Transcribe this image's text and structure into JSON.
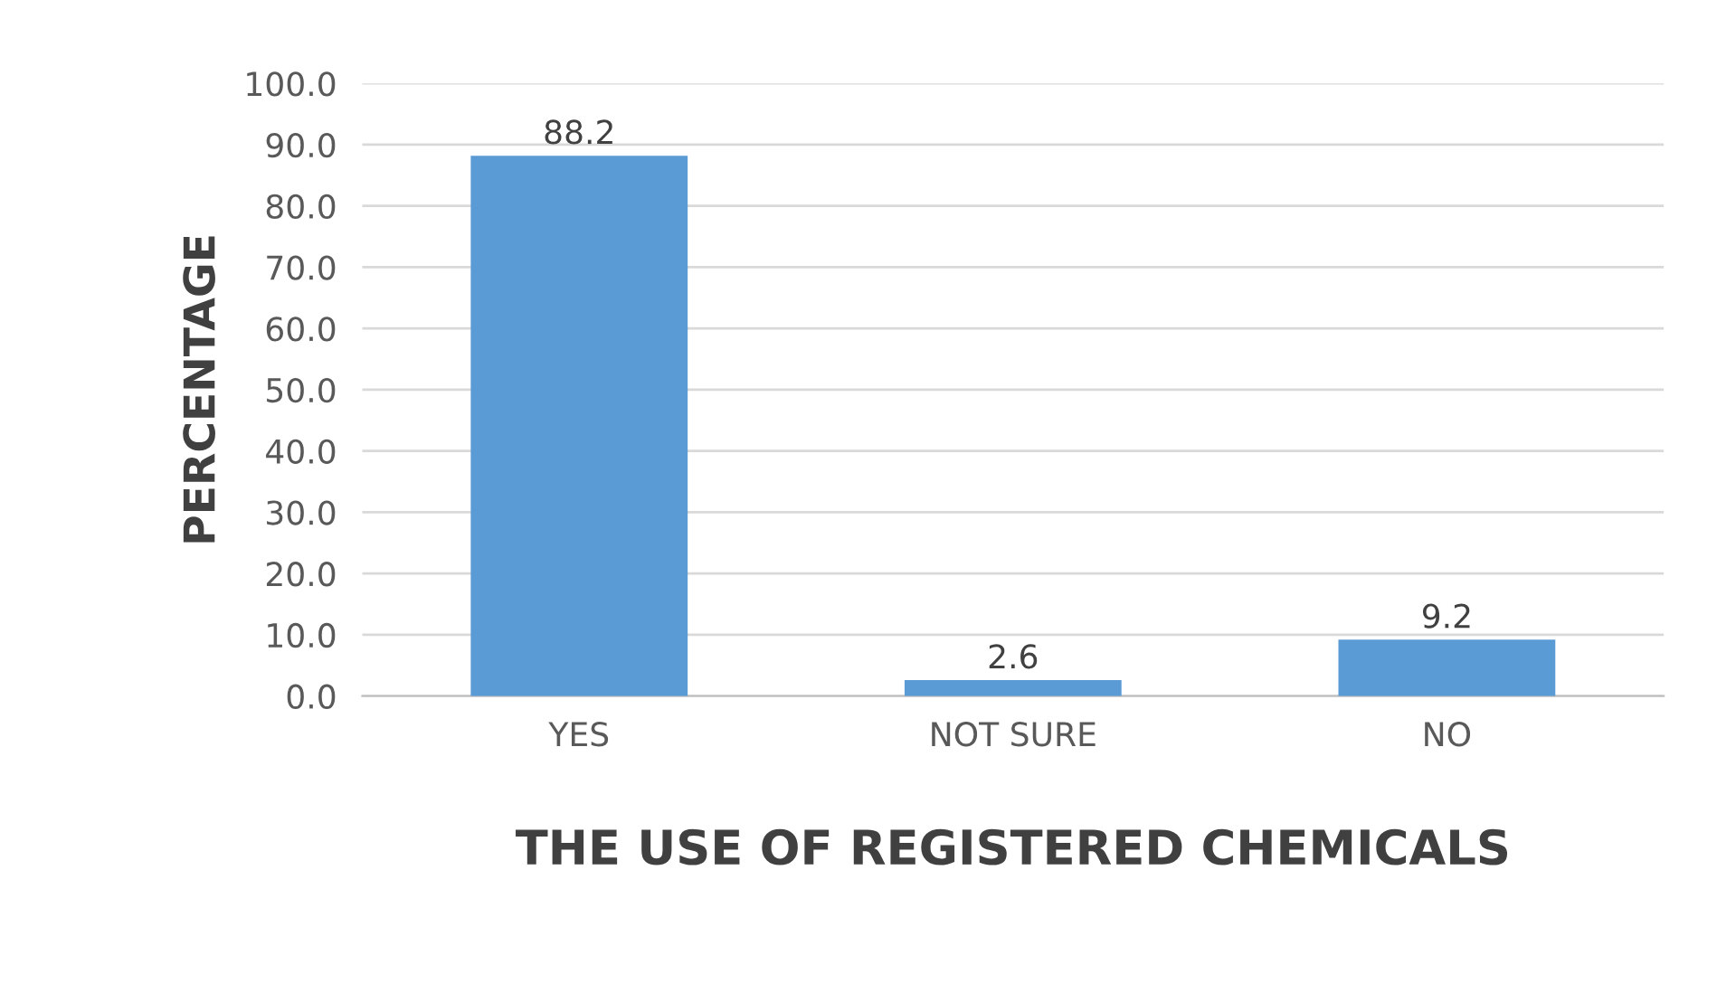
{
  "chart_data": {
    "type": "bar",
    "xlabel": "THE USE OF REGISTERED CHEMICALS",
    "ylabel": "PERCENTAGE",
    "categories": [
      "YES",
      "NOT SURE",
      "NO"
    ],
    "values": [
      88.2,
      2.6,
      9.2
    ],
    "color": "#5b9bd5",
    "ylim": [
      0,
      100
    ],
    "yticks": [
      {
        "value": 0,
        "label": "0.0"
      },
      {
        "value": 10,
        "label": "10.0"
      },
      {
        "value": 20,
        "label": "20.0"
      },
      {
        "value": 30,
        "label": "30.0"
      },
      {
        "value": 40,
        "label": "40.0"
      },
      {
        "value": 50,
        "label": "50.0"
      },
      {
        "value": 60,
        "label": "60.0"
      },
      {
        "value": 70,
        "label": "70.0"
      },
      {
        "value": 80,
        "label": "80.0"
      },
      {
        "value": 90,
        "label": "90.0"
      },
      {
        "value": 100,
        "label": "100.0"
      }
    ],
    "grid": "y",
    "data_labels": true
  }
}
